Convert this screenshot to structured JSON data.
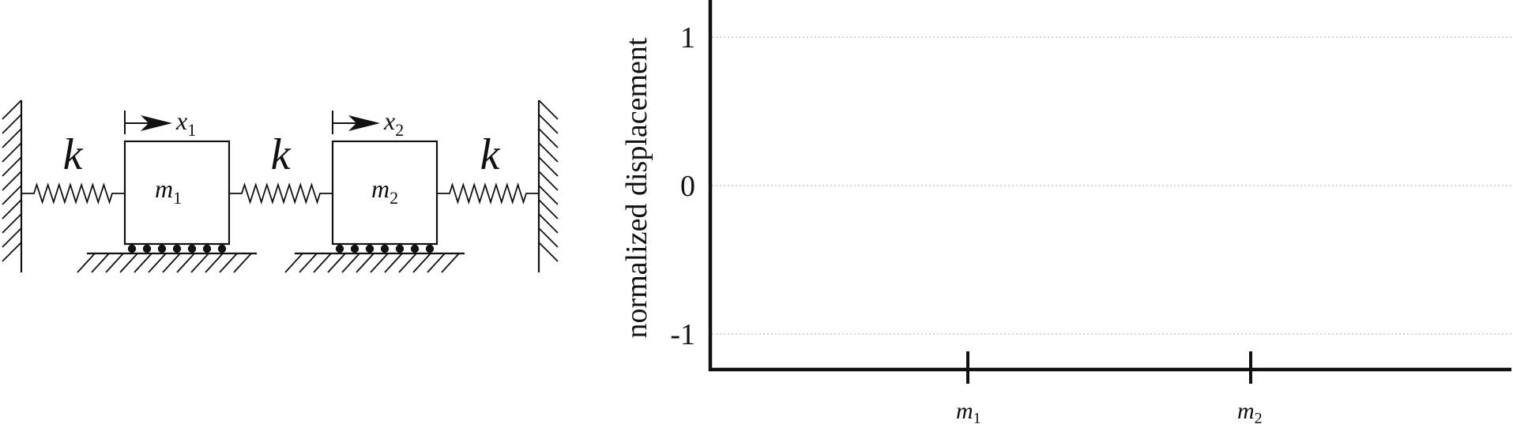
{
  "diagram": {
    "spring_label": "k",
    "mass_1": {
      "symbol": "m",
      "subscript": "1",
      "disp_symbol": "x",
      "disp_subscript": "1"
    },
    "mass_2": {
      "symbol": "m",
      "subscript": "2",
      "disp_symbol": "x",
      "disp_subscript": "2"
    }
  },
  "plot": {
    "ylabel": "normalized displacement",
    "y_ticks": [
      "1",
      "0",
      "-1"
    ],
    "y_values": [
      1,
      0,
      -1
    ],
    "x_ticks": [
      {
        "symbol": "m",
        "subscript": "1"
      },
      {
        "symbol": "m",
        "subscript": "2"
      }
    ],
    "grid_color": "#bdbdbd",
    "axis_color": "#111111"
  }
}
